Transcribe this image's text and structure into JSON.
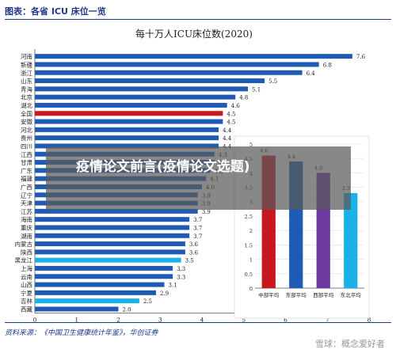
{
  "header": {
    "figure_title": "图表：各省 ICU 床位一览"
  },
  "source": "资料来源：《中国卫生健康统计年鉴》，华创证券",
  "overlay": {
    "title": "疫情论文前言(疫情论文选题)"
  },
  "watermark": {
    "text": "雪球：概念爱好者"
  },
  "colors": {
    "main_bar": "#c8171e",
    "highlight_bar": "#1f5bb4",
    "cyan_bar": "#1ab1e6",
    "accent": "#1f3a8a"
  },
  "chart_data": [
    {
      "type": "bar",
      "orientation": "horizontal",
      "title": "每十万人ICU床位数(2020)",
      "categories": [
        "河南",
        "新疆",
        "浙江",
        "山东",
        "青海",
        "北京",
        "湖北",
        "全国",
        "安徽",
        "河北",
        "贵州",
        "四川",
        "江西",
        "甘肃",
        "广东",
        "福建",
        "广西",
        "辽宁",
        "天津",
        "江苏",
        "海南",
        "重庆",
        "湖南",
        "内蒙古",
        "陕西",
        "黑龙江",
        "上海",
        "云南",
        "山西",
        "宁夏",
        "吉林",
        "西藏"
      ],
      "values": [
        7.6,
        6.8,
        6.4,
        5.5,
        5.1,
        4.8,
        4.6,
        4.5,
        4.5,
        4.4,
        4.4,
        4.4,
        4.3,
        4.3,
        4.2,
        4.1,
        4.0,
        3.9,
        3.9,
        3.9,
        3.7,
        3.7,
        3.7,
        3.6,
        3.6,
        3.5,
        3.3,
        3.3,
        3.1,
        2.9,
        2.5,
        2.0
      ],
      "highlight": {
        "全国": "#c8171e",
        "黑龙江": "#1ab1e6",
        "吉林": "#1ab1e6"
      },
      "default_color": "#1f5bb4",
      "xlim": [
        0,
        8
      ],
      "xticks": [
        0,
        1,
        2,
        3,
        4,
        5,
        6,
        7,
        8
      ]
    },
    {
      "type": "bar",
      "title": "",
      "categories": [
        "中部平均",
        "东部平均",
        "西部平均",
        "东北平均"
      ],
      "values": [
        4.6,
        4.4,
        4.0,
        3.3
      ],
      "colors": [
        "#c8171e",
        "#1f5bb4",
        "#6e3aa2",
        "#1ab1e6"
      ],
      "ylim": [
        0,
        5
      ],
      "yticks": [
        0,
        0.5,
        1,
        1.5,
        2,
        2.5,
        3,
        3.5,
        4,
        4.5,
        5
      ]
    }
  ]
}
